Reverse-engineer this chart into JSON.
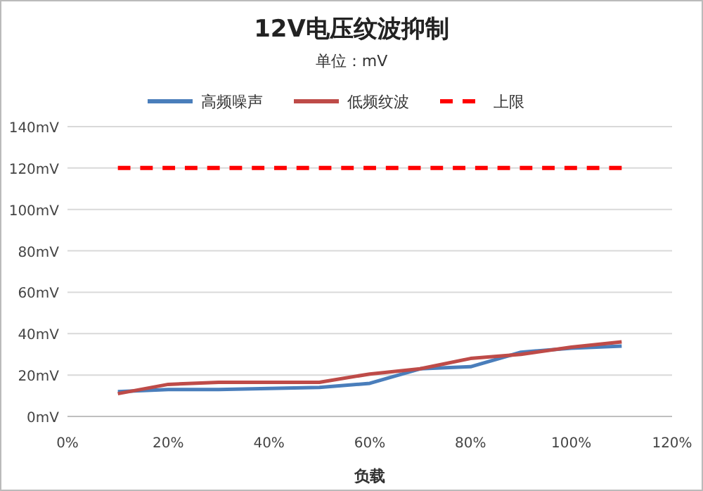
{
  "chart_data": {
    "type": "line",
    "title": "12V电压纹波抑制",
    "subtitle": "单位：mV",
    "xlabel": "负载",
    "x": [
      10,
      20,
      30,
      40,
      50,
      60,
      70,
      80,
      90,
      100,
      110
    ],
    "series": [
      {
        "name": "高频噪声",
        "color": "#4a7ebb",
        "values": [
          12,
          13,
          13,
          13.5,
          14,
          16,
          23,
          24,
          31,
          33,
          34
        ]
      },
      {
        "name": "低频纹波",
        "color": "#be4b48",
        "values": [
          11,
          15.5,
          16.5,
          16.5,
          16.5,
          20.5,
          23,
          28,
          30,
          33.5,
          36
        ]
      },
      {
        "name": "上限",
        "color": "#ff0000",
        "line_style": "dashed",
        "values": [
          120,
          120,
          120,
          120,
          120,
          120,
          120,
          120,
          120,
          120,
          120
        ]
      }
    ],
    "xlim": [
      0,
      120
    ],
    "xticks": [
      {
        "value": 0,
        "label": "0%"
      },
      {
        "value": 20,
        "label": "20%"
      },
      {
        "value": 40,
        "label": "40%"
      },
      {
        "value": 60,
        "label": "60%"
      },
      {
        "value": 80,
        "label": "80%"
      },
      {
        "value": 100,
        "label": "100%"
      },
      {
        "value": 120,
        "label": "120%"
      }
    ],
    "ylim": [
      0,
      140
    ],
    "yticks": [
      {
        "value": 0,
        "label": "0mV"
      },
      {
        "value": 20,
        "label": "20mV"
      },
      {
        "value": 40,
        "label": "40mV"
      },
      {
        "value": 60,
        "label": "60mV"
      },
      {
        "value": 80,
        "label": "80mV"
      },
      {
        "value": 100,
        "label": "100mV"
      },
      {
        "value": 120,
        "label": "120mV"
      },
      {
        "value": 140,
        "label": "140mV"
      }
    ],
    "grid": "y",
    "legend": "top",
    "line_style": "solid"
  }
}
